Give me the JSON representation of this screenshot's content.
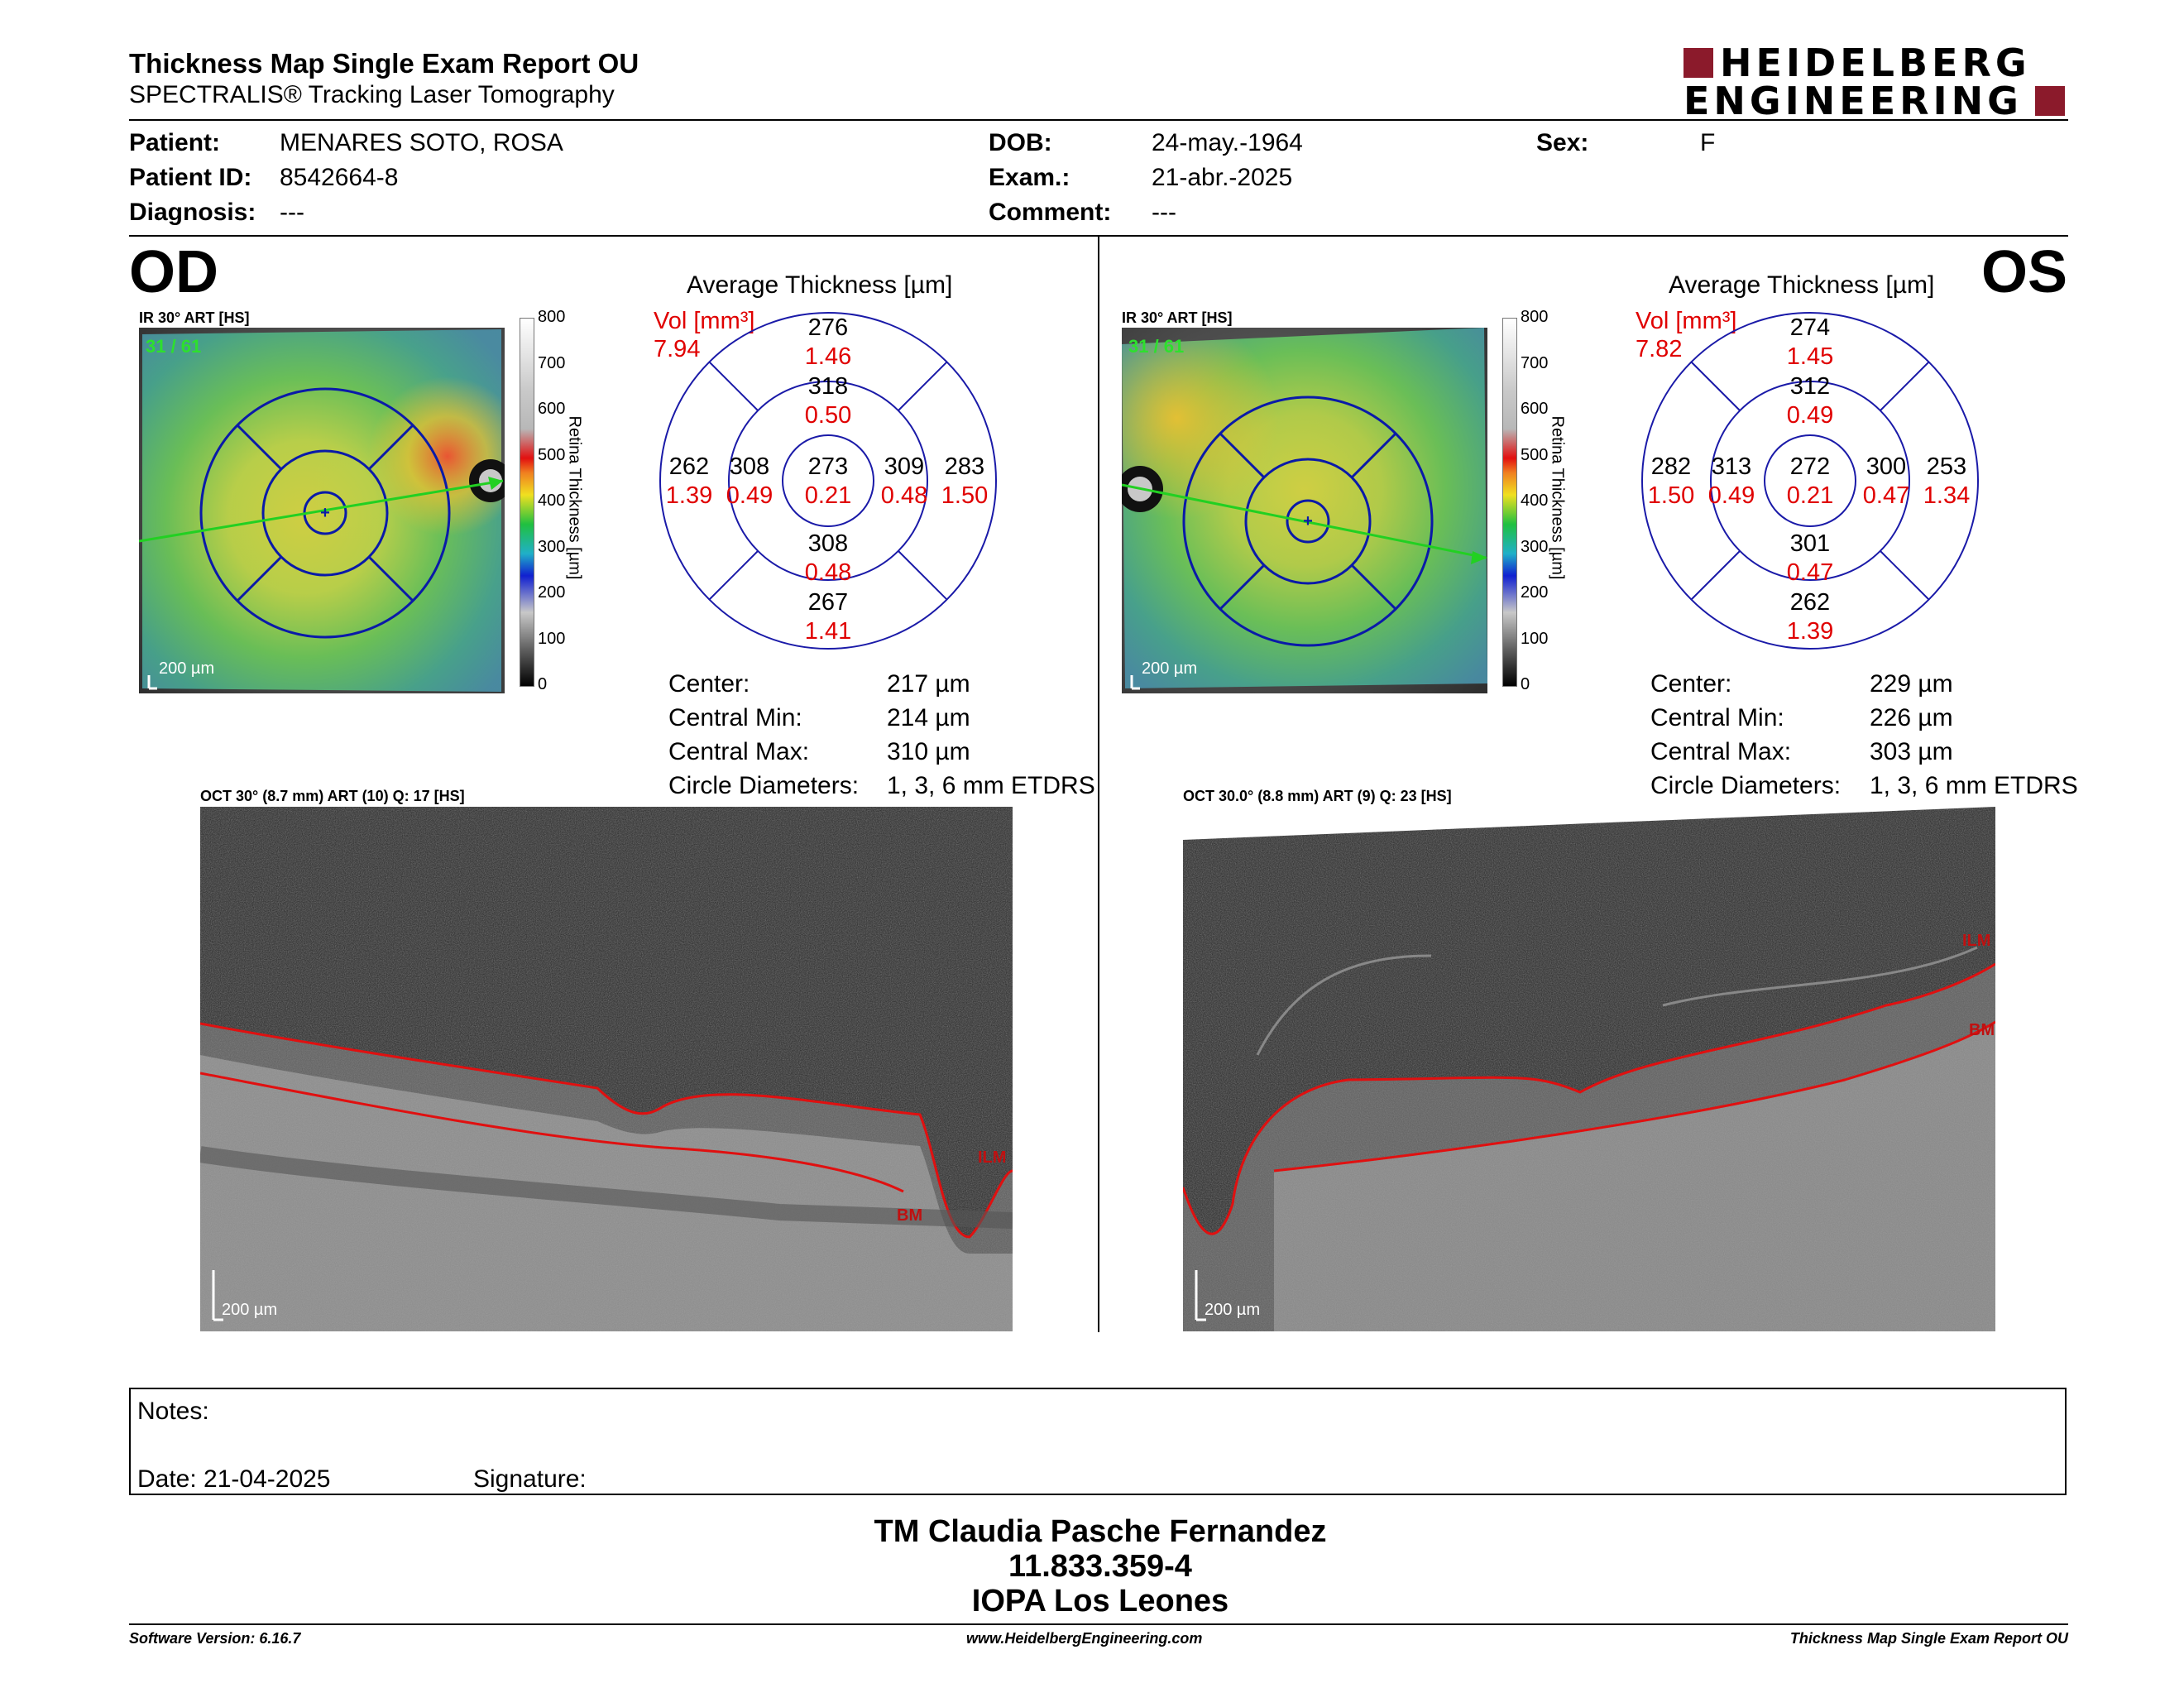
{
  "report": {
    "title": "Thickness Map Single Exam Report OU",
    "subtitle": "SPECTRALIS® Tracking Laser Tomography",
    "logo_line1": "HEIDELBERG",
    "logo_line2": "ENGINEERING",
    "brand_color": "#8b1a2b"
  },
  "patient": {
    "patient_label": "Patient:",
    "patient_value": "MENARES SOTO, ROSA",
    "id_label": "Patient ID:",
    "id_value": "8542664-8",
    "diagnosis_label": "Diagnosis:",
    "diagnosis_value": "---",
    "dob_label": "DOB:",
    "dob_value": "24-may.-1964",
    "exam_label": "Exam.:",
    "exam_value": "21-abr.-2025",
    "comment_label": "Comment:",
    "comment_value": "---",
    "sex_label": "Sex:",
    "sex_value": "F"
  },
  "od": {
    "eye_label": "OD",
    "ir_label": "IR 30° ART [HS]",
    "ir_counter": "31 / 61",
    "scale_label": "200 µm",
    "avg_title": "Average Thickness [µm]",
    "vol_label": "Vol [mm³]",
    "vol_value": "7.94",
    "grid": {
      "center_t": "273",
      "center_v": "0.21",
      "inner_top_t": "318",
      "inner_top_v": "0.50",
      "inner_bottom_t": "308",
      "inner_bottom_v": "0.48",
      "inner_left_t": "308",
      "inner_left_v": "0.49",
      "inner_right_t": "309",
      "inner_right_v": "0.48",
      "outer_top_t": "276",
      "outer_top_v": "1.46",
      "outer_bottom_t": "267",
      "outer_bottom_v": "1.41",
      "outer_left_t": "262",
      "outer_left_v": "1.39",
      "outer_right_t": "283",
      "outer_right_v": "1.50"
    },
    "stats": {
      "center_label": "Center:",
      "center_value": "217 µm",
      "min_label": "Central Min:",
      "min_value": "214 µm",
      "max_label": "Central Max:",
      "max_value": "310 µm",
      "circ_label": "Circle Diameters:",
      "circ_value": "1, 3, 6 mm ETDRS"
    },
    "oct_label": "OCT 30° (8.7 mm) ART (10) Q: 17 [HS]",
    "ilm": "ILM",
    "bm": "BM",
    "oct_scale": "200 µm"
  },
  "os": {
    "eye_label": "OS",
    "ir_label": "IR 30° ART [HS]",
    "ir_counter": "31 / 61",
    "scale_label": "200 µm",
    "avg_title": "Average Thickness [µm]",
    "vol_label": "Vol [mm³]",
    "vol_value": "7.82",
    "grid": {
      "center_t": "272",
      "center_v": "0.21",
      "inner_top_t": "312",
      "inner_top_v": "0.49",
      "inner_bottom_t": "301",
      "inner_bottom_v": "0.47",
      "inner_left_t": "313",
      "inner_left_v": "0.49",
      "inner_right_t": "300",
      "inner_right_v": "0.47",
      "outer_top_t": "274",
      "outer_top_v": "1.45",
      "outer_bottom_t": "262",
      "outer_bottom_v": "1.39",
      "outer_left_t": "282",
      "outer_left_v": "1.50",
      "outer_right_t": "253",
      "outer_right_v": "1.34"
    },
    "stats": {
      "center_label": "Center:",
      "center_value": "229 µm",
      "min_label": "Central Min:",
      "min_value": "226 µm",
      "max_label": "Central Max:",
      "max_value": "303 µm",
      "circ_label": "Circle Diameters:",
      "circ_value": "1, 3, 6 mm ETDRS"
    },
    "oct_label": "OCT 30.0° (8.8 mm) ART (9) Q: 23 [HS]",
    "ilm": "ILM",
    "bm": "BM",
    "oct_scale": "200 µm"
  },
  "colorbar": {
    "title": "Retina  Thickness [µm]",
    "ticks": [
      "800",
      "700",
      "600",
      "500",
      "400",
      "300",
      "200",
      "100",
      "0"
    ]
  },
  "notes": {
    "notes_label": "Notes:",
    "date_label": "Date: 21-04-2025",
    "signature_label": "Signature:"
  },
  "footer": {
    "name": "TM Claudia Pasche Fernandez",
    "rut": "11.833.359-4",
    "clinic": "IOPA Los Leones",
    "software": "Software Version: 6.16.7",
    "website": "www.HeidelbergEngineering.com",
    "report_name": "Thickness Map Single Exam Report OU"
  }
}
